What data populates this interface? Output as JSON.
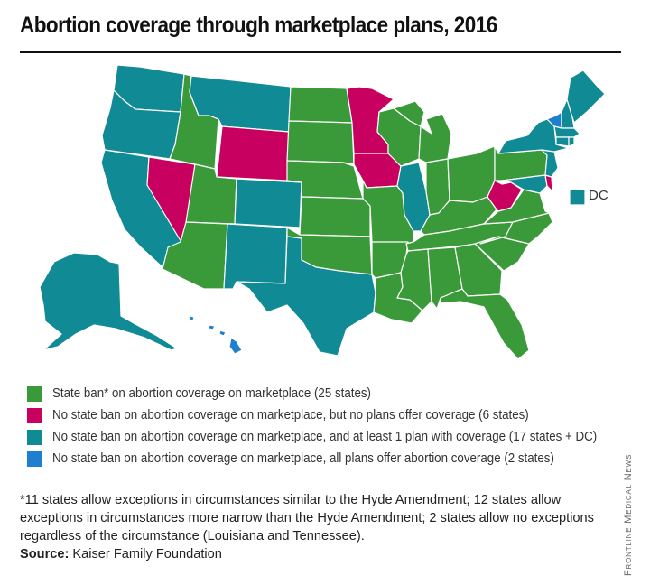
{
  "title": "Abortion coverage through marketplace plans, 2016",
  "colors": {
    "state_ban": "#3a9a3a",
    "no_plans": "#c8005f",
    "at_least_one": "#108a94",
    "all_plans": "#1e7fce",
    "border": "#ffffff"
  },
  "legend": [
    {
      "key": "state_ban",
      "label": "State ban* on abortion coverage on marketplace (25 states)"
    },
    {
      "key": "no_plans",
      "label": "No state ban on abortion coverage on marketplace, but no plans offer coverage (6 states)"
    },
    {
      "key": "at_least_one",
      "label": "No state ban on abortion coverage on marketplace, and at least 1 plan with coverage (17 states + DC)"
    },
    {
      "key": "all_plans",
      "label": "No state ban on abortion coverage on marketplace, all plans offer abortion coverage (2 states)"
    }
  ],
  "dc_label": "DC",
  "footnote": "*11 states allow exceptions in circumstances similar to the Hyde Amendment; 12 states allow exceptions in circumstances more narrow than the Hyde Amendment; 2 states allow no exceptions regardless of the circumstance (Louisiana and Tennessee).",
  "source_label": "Source:",
  "source_text": "Kaiser Family Foundation",
  "credit": "Frontline Medical News",
  "state_categories": {
    "WA": "at_least_one",
    "OR": "at_least_one",
    "CA": "at_least_one",
    "NV": "no_plans",
    "ID": "state_ban",
    "MT": "at_least_one",
    "WY": "no_plans",
    "UT": "state_ban",
    "AZ": "state_ban",
    "CO": "at_least_one",
    "NM": "at_least_one",
    "ND": "state_ban",
    "SD": "state_ban",
    "NE": "state_ban",
    "KS": "state_ban",
    "OK": "state_ban",
    "TX": "at_least_one",
    "MN": "no_plans",
    "IA": "no_plans",
    "MO": "state_ban",
    "AR": "state_ban",
    "LA": "state_ban",
    "WI": "state_ban",
    "IL": "at_least_one",
    "MI": "state_ban",
    "IN": "state_ban",
    "OH": "state_ban",
    "KY": "state_ban",
    "TN": "state_ban",
    "MS": "state_ban",
    "AL": "state_ban",
    "GA": "state_ban",
    "FL": "state_ban",
    "SC": "state_ban",
    "NC": "state_ban",
    "VA": "state_ban",
    "WV": "no_plans",
    "DE": "no_plans",
    "PA": "state_ban",
    "MD": "at_least_one",
    "NJ": "at_least_one",
    "NY": "at_least_one",
    "CT": "at_least_one",
    "RI": "at_least_one",
    "MA": "at_least_one",
    "NH": "at_least_one",
    "VT": "all_plans",
    "ME": "at_least_one",
    "AK": "at_least_one",
    "HI": "all_plans",
    "DC": "at_least_one"
  }
}
